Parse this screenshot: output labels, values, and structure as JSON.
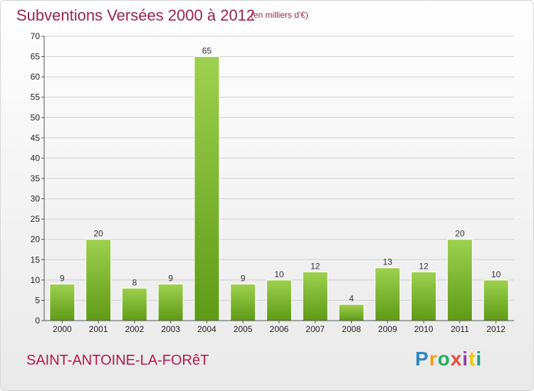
{
  "header": {
    "title": "Subventions Versées 2000 à 2012",
    "unit_note": "(en milliers d'€)"
  },
  "footer": {
    "commune": "SAINT-ANTOINE-LA-FORêT",
    "logo_letters": [
      {
        "char": "P",
        "color": "#2e86c1"
      },
      {
        "char": "r",
        "color": "#f39c12"
      },
      {
        "char": "o",
        "color": "#27ae60"
      },
      {
        "char": "x",
        "color": "#e74c3c"
      },
      {
        "char": "i",
        "color": "#8e44ad"
      },
      {
        "char": "t",
        "color": "#f1c40f"
      },
      {
        "char": "i",
        "color": "#16a085"
      }
    ]
  },
  "chart_data": {
    "type": "bar",
    "title": "Subventions Versées 2000 à 2012",
    "subtitle": "(en milliers d'€)",
    "xlabel": "",
    "ylabel": "",
    "categories": [
      "2000",
      "2001",
      "2002",
      "2003",
      "2004",
      "2005",
      "2006",
      "2007",
      "2008",
      "2009",
      "2010",
      "2011",
      "2012"
    ],
    "values": [
      9,
      20,
      8,
      9,
      65,
      9,
      10,
      12,
      4,
      13,
      12,
      20,
      10
    ],
    "ylim": [
      0,
      70
    ],
    "yticks": [
      0,
      5,
      10,
      15,
      20,
      25,
      30,
      35,
      40,
      45,
      50,
      55,
      60,
      65,
      70
    ],
    "grid": true,
    "legend": "none",
    "colors": {
      "bar_light": "#9ed14f",
      "bar_dark": "#5f9a17",
      "grid": "#cfcfcf",
      "axis": "#555555"
    }
  }
}
